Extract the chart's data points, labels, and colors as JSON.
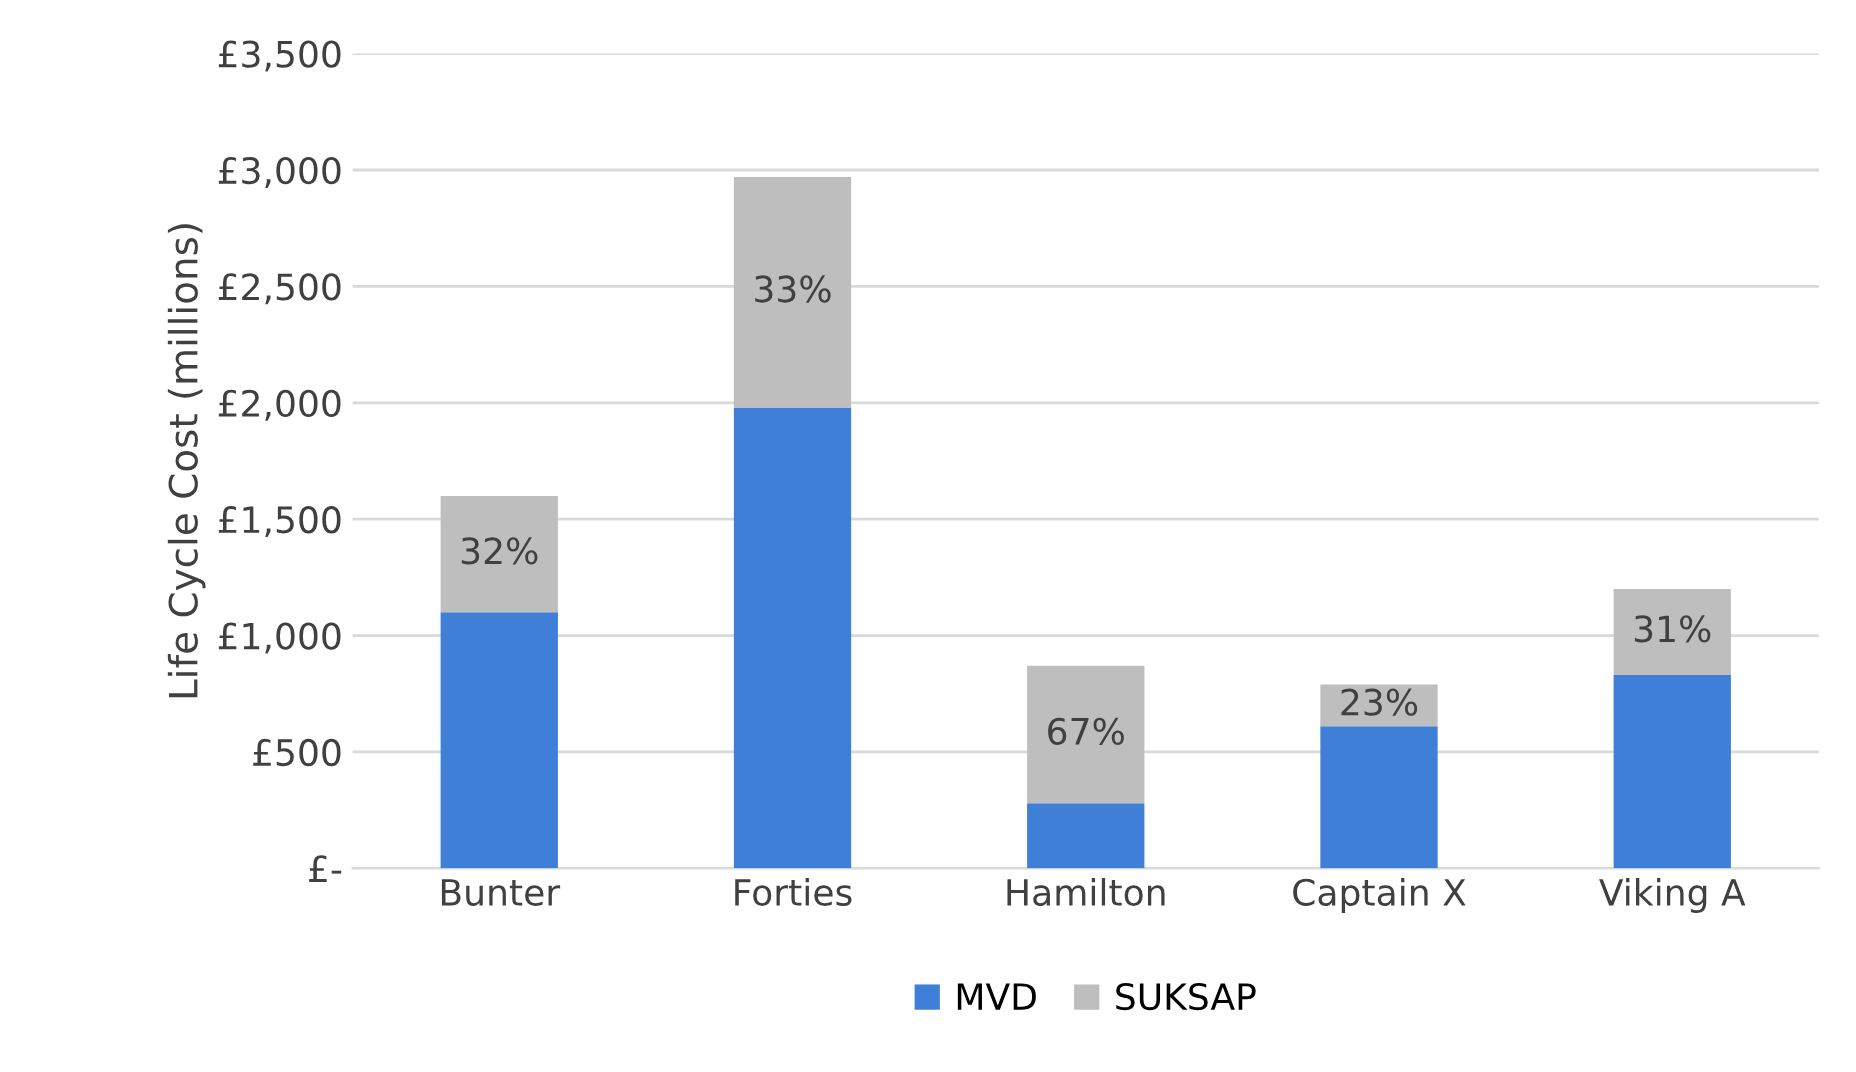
{
  "chart_data": {
    "type": "bar",
    "stacked": true,
    "ylabel": "Life Cycle Cost (millions)",
    "categories": [
      "Bunter",
      "Forties",
      "Hamilton",
      "Captain X",
      "Viking A"
    ],
    "series": [
      {
        "name": "MVD",
        "color": "#3f7fd8",
        "values": [
          1100,
          1980,
          280,
          610,
          830
        ]
      },
      {
        "name": "SUKSAP",
        "color": "#bebebe",
        "values": [
          500,
          990,
          590,
          180,
          370
        ]
      }
    ],
    "annotations": [
      {
        "text": "32%",
        "x": "Bunter",
        "y": 1600
      },
      {
        "text": "33%",
        "x": "Forties",
        "y": 2970
      },
      {
        "text": "67%",
        "x": "Hamilton",
        "y": 870
      },
      {
        "text": "23%",
        "x": "Captain X",
        "y": 790
      },
      {
        "text": "31%",
        "x": "Viking A",
        "y": 1200
      }
    ],
    "ylim": [
      0,
      3500
    ],
    "yticks": [
      {
        "value": 0,
        "label": "£-"
      },
      {
        "value": 500,
        "label": "£500"
      },
      {
        "value": 1000,
        "label": "£1,000"
      },
      {
        "value": 1500,
        "label": "£1,500"
      },
      {
        "value": 2000,
        "label": "£2,000"
      },
      {
        "value": 2500,
        "label": "£2,500"
      },
      {
        "value": 3000,
        "label": "£3,000"
      },
      {
        "value": 3500,
        "label": "£3,500"
      }
    ],
    "grid": "y",
    "legend": "bottom"
  }
}
